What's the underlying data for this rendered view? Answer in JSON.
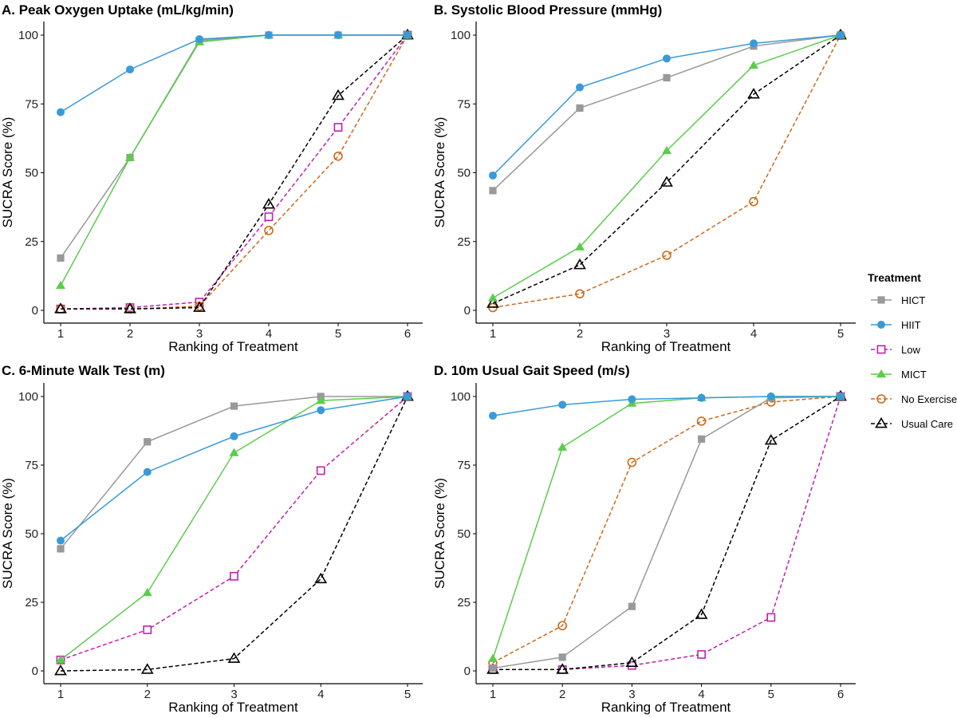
{
  "legend": {
    "title": "Treatment",
    "items": [
      {
        "name": "HICT",
        "color": "#999999",
        "marker": "square-filled",
        "dash": false
      },
      {
        "name": "HIIT",
        "color": "#3a9ad9",
        "marker": "circle-filled",
        "dash": false
      },
      {
        "name": "Low",
        "color": "#c020b0",
        "marker": "square-open",
        "dash": true
      },
      {
        "name": "MICT",
        "color": "#5ccc4c",
        "marker": "triangle-filled",
        "dash": false
      },
      {
        "name": "No Exercise",
        "color": "#cc6a1a",
        "marker": "circle-open",
        "dash": true
      },
      {
        "name": "Usual Care",
        "color": "#000000",
        "marker": "triangle-open",
        "dash": true
      }
    ]
  },
  "chart_data": [
    {
      "type": "line",
      "title": "A. Peak Oxygen Uptake (mL/kg/min)",
      "xlabel": "Ranking of Treatment",
      "ylabel": "SUCRA Score (%)",
      "x": [
        1,
        2,
        3,
        4,
        5,
        6
      ],
      "xlim": [
        1,
        6
      ],
      "ylim": [
        0,
        100
      ],
      "yticks": [
        0,
        25,
        50,
        75,
        100
      ],
      "series": [
        {
          "name": "Low",
          "values": [
            0.5,
            1,
            3,
            34,
            66.5,
            100
          ]
        },
        {
          "name": "No Exercise",
          "values": [
            0.5,
            0.5,
            1.5,
            29,
            56,
            100
          ]
        },
        {
          "name": "Usual Care",
          "values": [
            0.5,
            0.5,
            1,
            38.5,
            78,
            100
          ]
        },
        {
          "name": "HICT",
          "values": [
            19,
            55.5,
            98,
            100,
            100,
            100
          ]
        },
        {
          "name": "MICT",
          "values": [
            9,
            55.5,
            97.5,
            100,
            100,
            100
          ]
        },
        {
          "name": "HIIT",
          "values": [
            72,
            87.5,
            98.5,
            100,
            100,
            100
          ]
        }
      ]
    },
    {
      "type": "line",
      "title": "B. Systolic Blood Pressure (mmHg)",
      "xlabel": "Ranking of Treatment",
      "ylabel": "SUCRA Score (%)",
      "x": [
        1,
        2,
        3,
        4,
        5
      ],
      "xlim": [
        1,
        5
      ],
      "ylim": [
        0,
        100
      ],
      "yticks": [
        0,
        25,
        50,
        75,
        100
      ],
      "series": [
        {
          "name": "No Exercise",
          "values": [
            1,
            6,
            20,
            39.5,
            100
          ]
        },
        {
          "name": "Usual Care",
          "values": [
            2.5,
            16.5,
            46.5,
            78.5,
            100
          ]
        },
        {
          "name": "HICT",
          "values": [
            43.5,
            73.5,
            84.5,
            96,
            100
          ]
        },
        {
          "name": "MICT",
          "values": [
            4.5,
            23,
            58,
            89,
            100
          ]
        },
        {
          "name": "HIIT",
          "values": [
            49,
            81,
            91.5,
            97,
            100
          ]
        }
      ]
    },
    {
      "type": "line",
      "title": "C. 6-Minute Walk Test (m)",
      "xlabel": "Ranking of Treatment",
      "ylabel": "SUCRA Score (%)",
      "x": [
        1,
        2,
        3,
        4,
        5
      ],
      "xlim": [
        1,
        5
      ],
      "ylim": [
        0,
        100
      ],
      "yticks": [
        0,
        25,
        50,
        75,
        100
      ],
      "series": [
        {
          "name": "Low",
          "values": [
            4,
            15,
            34.5,
            73,
            100
          ]
        },
        {
          "name": "Usual Care",
          "values": [
            0,
            0.5,
            4.5,
            33.5,
            100
          ]
        },
        {
          "name": "HICT",
          "values": [
            44.5,
            83.5,
            96.5,
            100,
            100
          ]
        },
        {
          "name": "MICT",
          "values": [
            4,
            28.5,
            79.5,
            98.5,
            100
          ]
        },
        {
          "name": "HIIT",
          "values": [
            47.5,
            72.5,
            85.5,
            95,
            100
          ]
        }
      ]
    },
    {
      "type": "line",
      "title": "D. 10m Usual Gait Speed (m/s)",
      "xlabel": "Ranking of Treatment",
      "ylabel": "SUCRA Score (%)",
      "x": [
        1,
        2,
        3,
        4,
        5,
        6
      ],
      "xlim": [
        1,
        6
      ],
      "ylim": [
        0,
        100
      ],
      "yticks": [
        0,
        25,
        50,
        75,
        100
      ],
      "series": [
        {
          "name": "Low",
          "values": [
            0.5,
            0.5,
            2,
            6,
            19.5,
            100
          ]
        },
        {
          "name": "No Exercise",
          "values": [
            3,
            16.5,
            76,
            91,
            98,
            100
          ]
        },
        {
          "name": "Usual Care",
          "values": [
            0.5,
            0.5,
            3,
            20.5,
            84,
            100
          ]
        },
        {
          "name": "HICT",
          "values": [
            1,
            5,
            23.5,
            84.5,
            99.5,
            100
          ]
        },
        {
          "name": "MICT",
          "values": [
            4.5,
            81.5,
            97.5,
            99.5,
            100,
            100
          ]
        },
        {
          "name": "HIIT",
          "values": [
            93,
            97,
            99,
            99.5,
            100,
            100
          ]
        }
      ]
    }
  ]
}
